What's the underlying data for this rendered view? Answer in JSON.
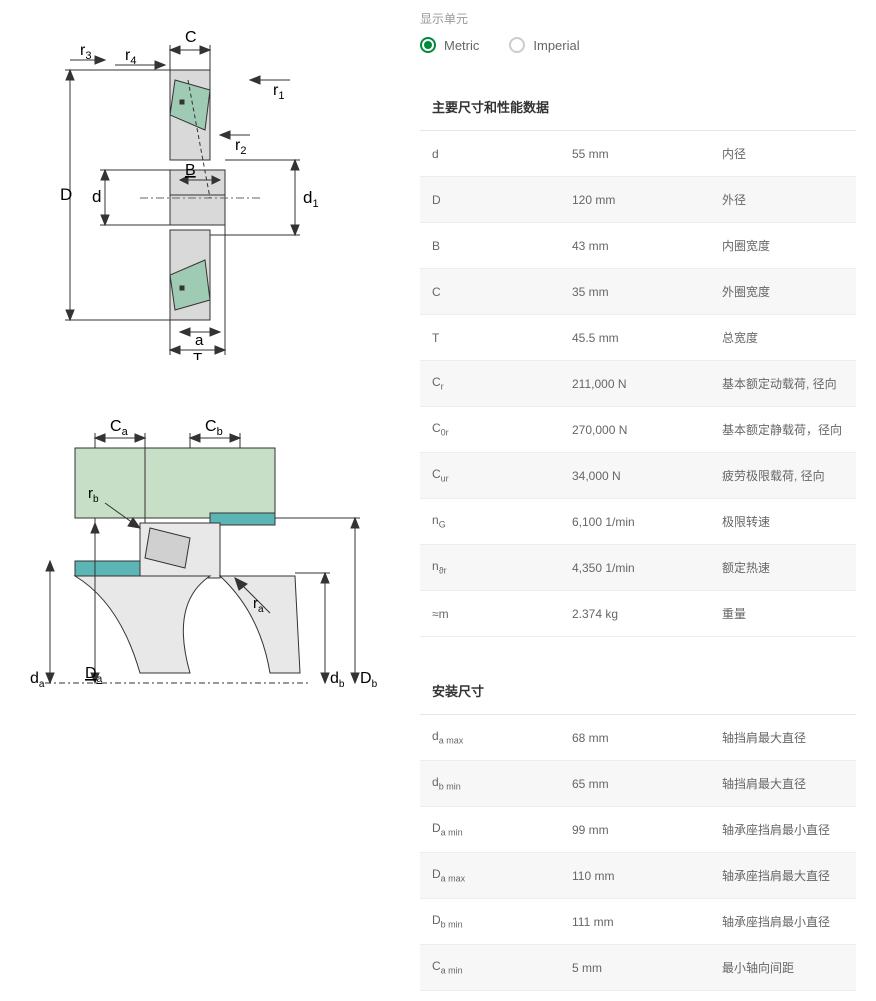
{
  "units": {
    "label": "显示单元",
    "options": {
      "metric": "Metric",
      "imperial": "Imperial"
    },
    "selected": "metric"
  },
  "diagram1": {
    "labels": {
      "r3": "r",
      "r3_sub": "3",
      "r4": "r",
      "r4_sub": "4",
      "C": "C",
      "r1": "r",
      "r1_sub": "1",
      "r2": "r",
      "r2_sub": "2",
      "D": "D",
      "d": "d",
      "B": "B",
      "d1": "d",
      "d1_sub": "1",
      "a": "a",
      "T": "T"
    },
    "colors": {
      "body_fill": "#d9d9d9",
      "roller_fill": "#9fcab3",
      "stroke": "#333333",
      "centerline": "#666666"
    }
  },
  "diagram2": {
    "labels": {
      "Ca": "C",
      "Ca_sub": "a",
      "Cb": "C",
      "Cb_sub": "b",
      "rb": "r",
      "rb_sub": "b",
      "ra": "r",
      "ra_sub": "a",
      "da": "d",
      "da_sub": "a",
      "Da": "D",
      "Da_sub": "a",
      "db": "d",
      "db_sub": "b",
      "Db": "D",
      "Db_sub": "b"
    },
    "colors": {
      "housing_fill": "#c6dfc6",
      "shaft_fill": "#ececec",
      "ring_teal": "#5bb5b5",
      "stroke": "#333333"
    }
  },
  "sections": {
    "main": {
      "title": "主要尺寸和性能数据",
      "rows": [
        {
          "sym": "d",
          "sub": "",
          "val": "55 mm",
          "desc": "内径"
        },
        {
          "sym": "D",
          "sub": "",
          "val": "120 mm",
          "desc": "外径"
        },
        {
          "sym": "B",
          "sub": "",
          "val": "43 mm",
          "desc": "内圈宽度"
        },
        {
          "sym": "C",
          "sub": "",
          "val": "35 mm",
          "desc": "外圈宽度"
        },
        {
          "sym": "T",
          "sub": "",
          "val": "45.5 mm",
          "desc": "总宽度"
        },
        {
          "sym": "C",
          "sub": "r",
          "val": "211,000 N",
          "desc": "基本额定动载荷, 径向"
        },
        {
          "sym": "C",
          "sub": "0r",
          "val": "270,000 N",
          "desc": "基本额定静载荷，径向"
        },
        {
          "sym": "C",
          "sub": "ur",
          "val": "34,000 N",
          "desc": "疲劳极限载荷, 径向"
        },
        {
          "sym": "n",
          "sub": "G",
          "val": "6,100 1/min",
          "desc": "极限转速"
        },
        {
          "sym": "n",
          "sub": "ϑr",
          "val": "4,350 1/min",
          "desc": "额定热速"
        },
        {
          "sym": "≈m",
          "sub": "",
          "val": "2.374 kg",
          "desc": "重量"
        }
      ]
    },
    "mount": {
      "title": "安装尺寸",
      "rows": [
        {
          "sym": "d",
          "sub": "a max",
          "val": "68 mm",
          "desc": "轴挡肩最大直径"
        },
        {
          "sym": "d",
          "sub": "b min",
          "val": "65 mm",
          "desc": "轴挡肩最大直径"
        },
        {
          "sym": "D",
          "sub": "a min",
          "val": "99 mm",
          "desc": "轴承座挡肩最小直径"
        },
        {
          "sym": "D",
          "sub": "a max",
          "val": "110 mm",
          "desc": "轴承座挡肩最大直径"
        },
        {
          "sym": "D",
          "sub": "b min",
          "val": "111 mm",
          "desc": "轴承座挡肩最小直径"
        },
        {
          "sym": "C",
          "sub": "a min",
          "val": "5 mm",
          "desc": "最小轴向间距"
        }
      ]
    }
  }
}
